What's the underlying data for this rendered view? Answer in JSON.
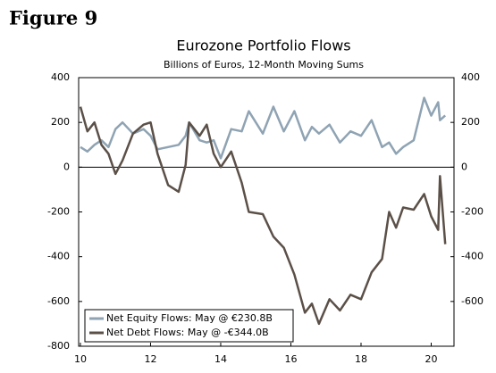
{
  "figure": "Figure 9",
  "chart_data": {
    "type": "line",
    "title": "Eurozone Portfolio Flows",
    "subtitle": "Billions of Euros, 12-Month Moving Sums",
    "x": [
      10,
      10.2,
      10.4,
      10.6,
      10.8,
      11,
      11.2,
      11.5,
      11.8,
      12,
      12.2,
      12.5,
      12.8,
      13,
      13.1,
      13.4,
      13.6,
      13.8,
      14,
      14.3,
      14.6,
      14.8,
      15.2,
      15.5,
      15.8,
      16.1,
      16.4,
      16.6,
      16.8,
      17.1,
      17.4,
      17.7,
      18,
      18.3,
      18.6,
      18.8,
      19,
      19.2,
      19.5,
      19.8,
      20,
      20.2,
      20.25,
      20.4
    ],
    "series": [
      {
        "name": "Net Equity Flows: May @ €230.8B",
        "color": "#8fa3b3",
        "values": [
          90,
          70,
          100,
          120,
          90,
          170,
          200,
          150,
          170,
          140,
          80,
          90,
          100,
          140,
          200,
          120,
          110,
          120,
          40,
          170,
          160,
          250,
          150,
          270,
          160,
          250,
          120,
          180,
          150,
          190,
          110,
          160,
          140,
          210,
          90,
          110,
          60,
          90,
          120,
          310,
          230,
          290,
          210,
          230.8
        ]
      },
      {
        "name": "Net Debt Flows: May @ -€344.0B",
        "color": "#5b5048",
        "values": [
          270,
          160,
          200,
          100,
          60,
          -30,
          30,
          150,
          190,
          200,
          60,
          -80,
          -110,
          10,
          200,
          140,
          190,
          60,
          0,
          70,
          -70,
          -200,
          -210,
          -310,
          -360,
          -480,
          -650,
          -610,
          -700,
          -590,
          -640,
          -570,
          -590,
          -470,
          -410,
          -200,
          -270,
          -180,
          -190,
          -120,
          -220,
          -280,
          -40,
          -344
        ]
      }
    ],
    "xlim": [
      9.95,
      20.65
    ],
    "xticks": [
      10,
      12,
      14,
      16,
      18,
      20
    ],
    "ylim": [
      -800,
      400
    ],
    "yticks": [
      400,
      200,
      0,
      -200,
      -400,
      -600,
      -800
    ],
    "y2lim": [
      -800,
      400
    ],
    "y2ticks": [
      400,
      200,
      0,
      -200,
      -400,
      -600
    ],
    "zero_line": true,
    "legend": "lower left"
  }
}
